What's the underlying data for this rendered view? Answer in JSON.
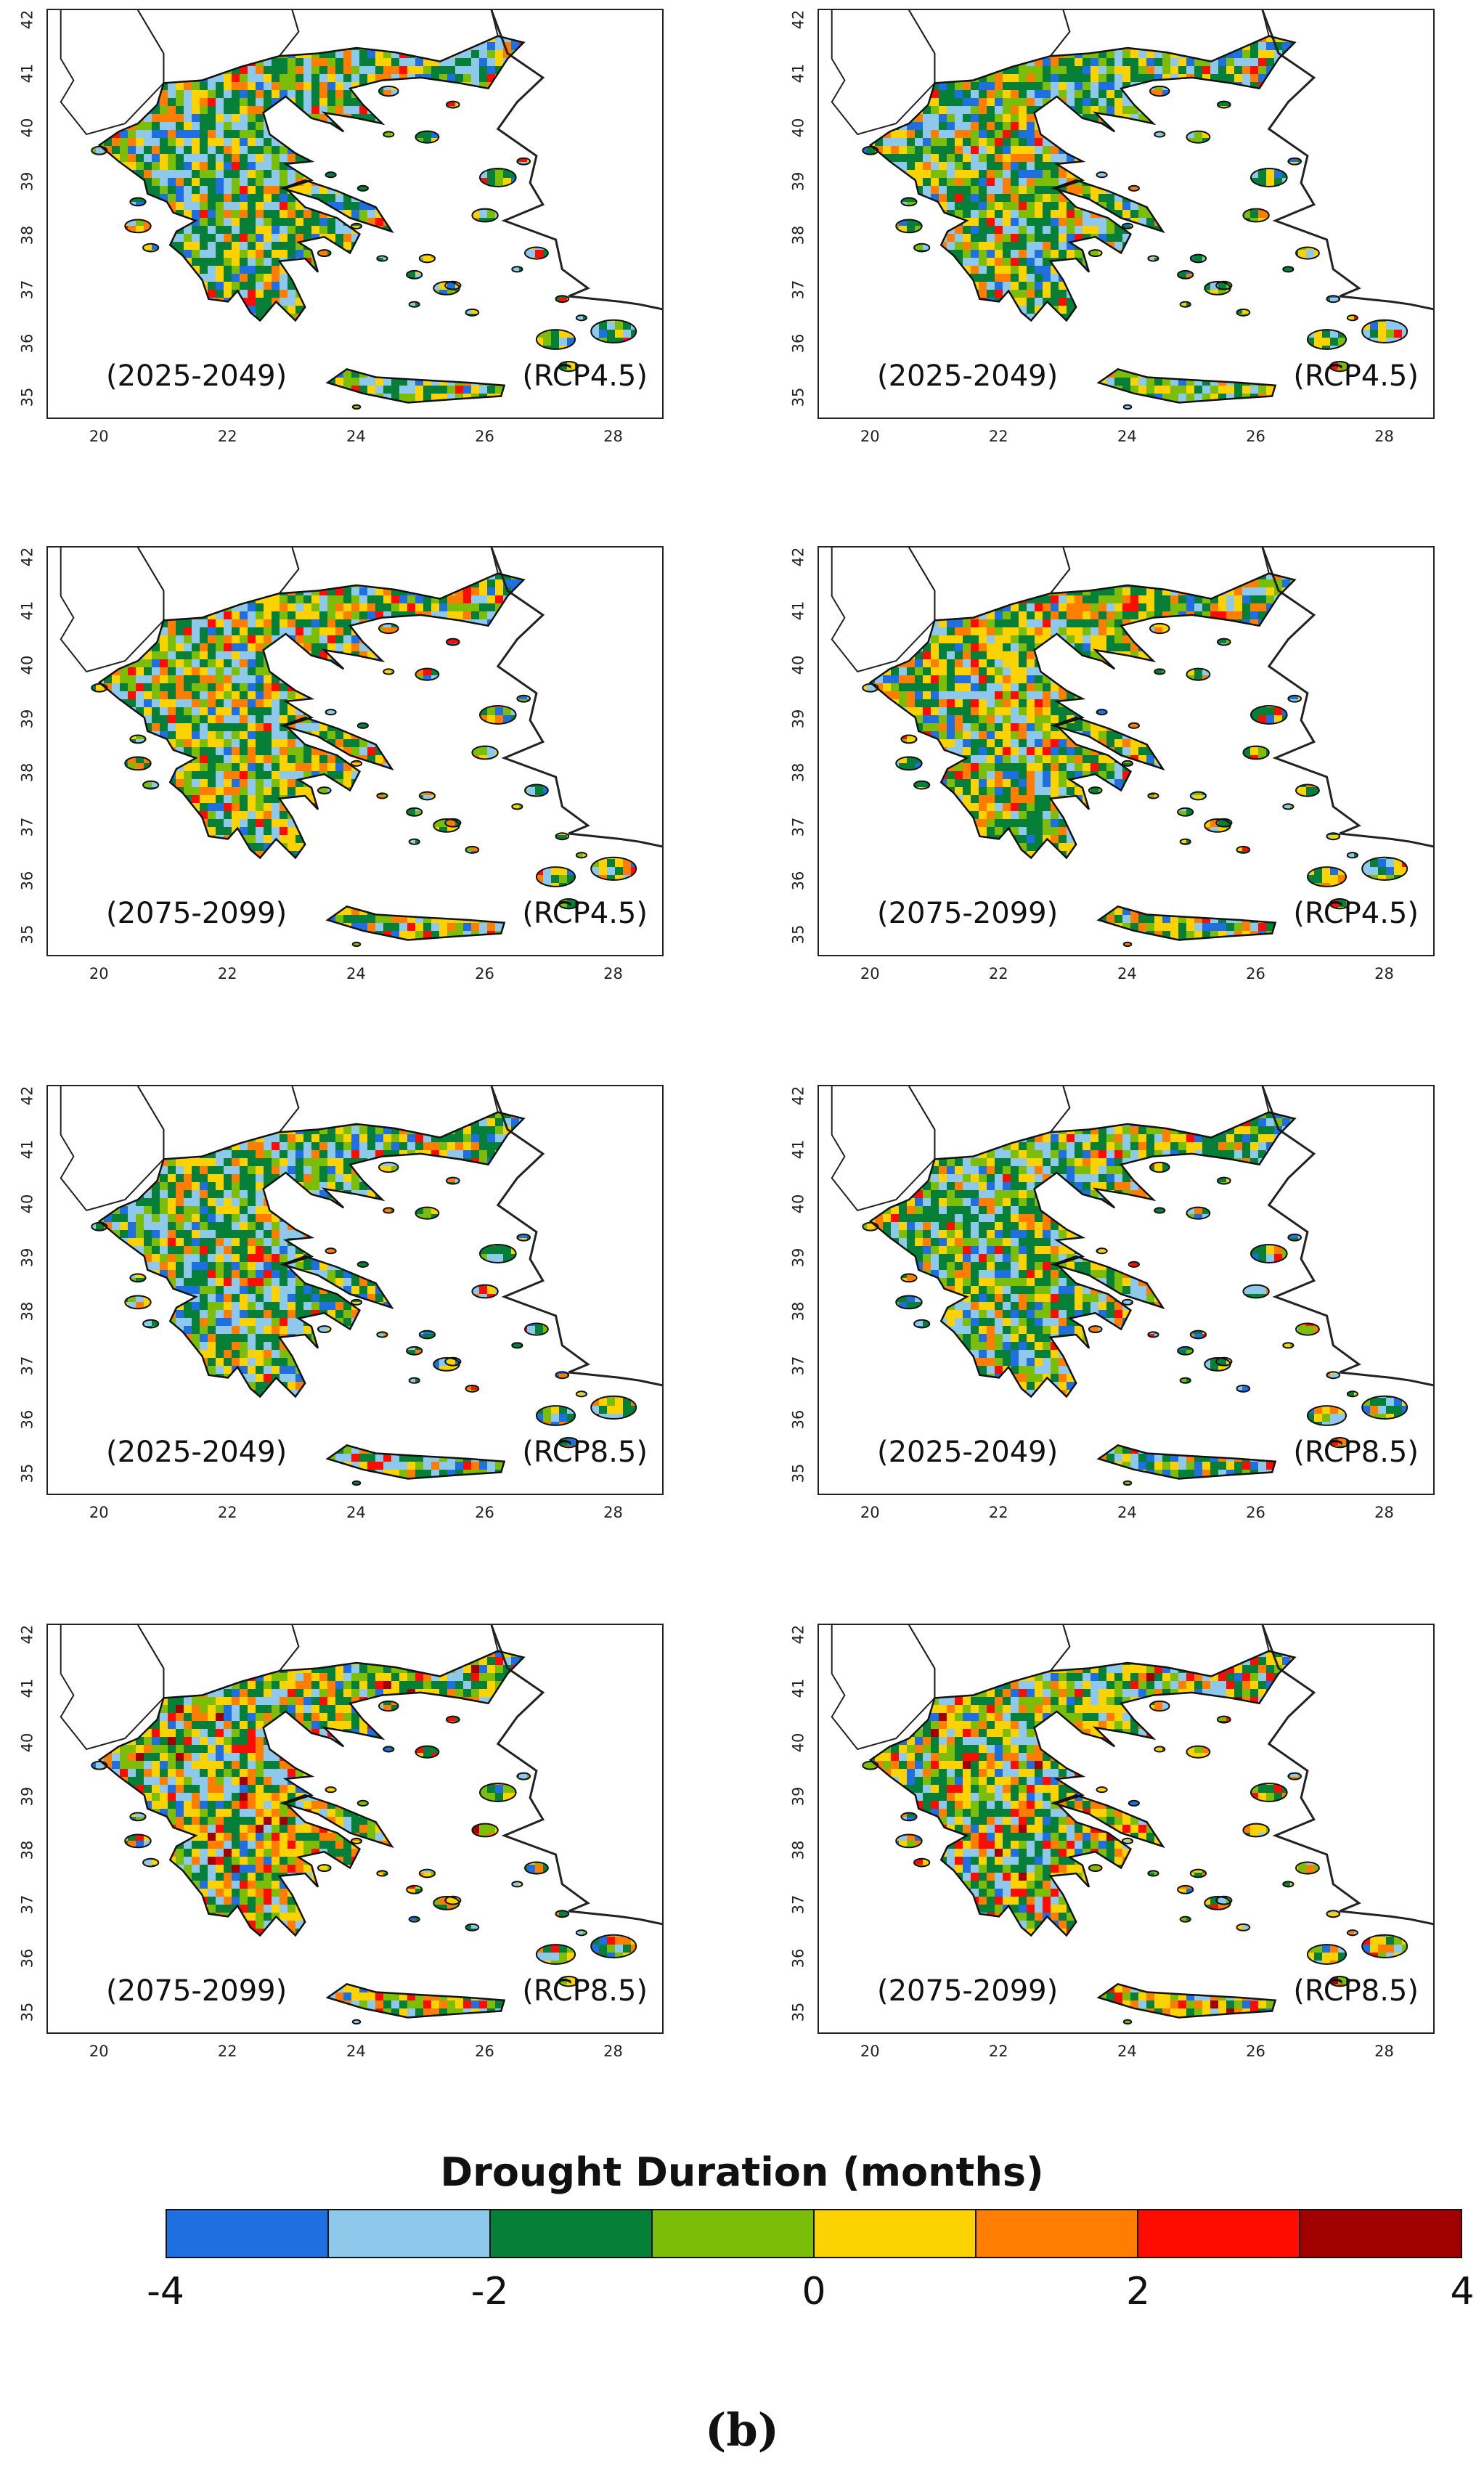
{
  "panels": [
    {
      "period": "(2025-2049)",
      "scenario": "(RCP4.5)"
    },
    {
      "period": "(2025-2049)",
      "scenario": "(RCP4.5)"
    },
    {
      "period": "(2075-2099)",
      "scenario": "(RCP4.5)"
    },
    {
      "period": "(2075-2099)",
      "scenario": "(RCP4.5)"
    },
    {
      "period": "(2025-2049)",
      "scenario": "(RCP8.5)"
    },
    {
      "period": "(2025-2049)",
      "scenario": "(RCP8.5)"
    },
    {
      "period": "(2075-2099)",
      "scenario": "(RCP8.5)"
    },
    {
      "period": "(2075-2099)",
      "scenario": "(RCP8.5)"
    }
  ],
  "axes": {
    "x_ticks": [
      "20",
      "22",
      "24",
      "26",
      "28"
    ],
    "y_ticks": [
      "35",
      "36",
      "37",
      "38",
      "39",
      "40",
      "41",
      "42"
    ],
    "x_range": [
      19.2,
      28.8
    ],
    "y_range": [
      34.6,
      42.2
    ]
  },
  "legend": {
    "title": "Drought Duration (months)",
    "bins": [
      {
        "from": -4,
        "to": -3,
        "color": "#1f6fe0"
      },
      {
        "from": -3,
        "to": -2,
        "color": "#8ec8ea"
      },
      {
        "from": -2,
        "to": -1,
        "color": "#068039"
      },
      {
        "from": -1,
        "to": 0,
        "color": "#7cbd0a"
      },
      {
        "from": 0,
        "to": 1,
        "color": "#fcd300"
      },
      {
        "from": 1,
        "to": 2,
        "color": "#ff7d00"
      },
      {
        "from": 2,
        "to": 3,
        "color": "#ff0c00"
      },
      {
        "from": 3,
        "to": 4,
        "color": "#a00000"
      }
    ],
    "tick_labels": [
      "-4",
      "-2",
      "0",
      "2",
      "4"
    ]
  },
  "sublabel": "(b)"
}
